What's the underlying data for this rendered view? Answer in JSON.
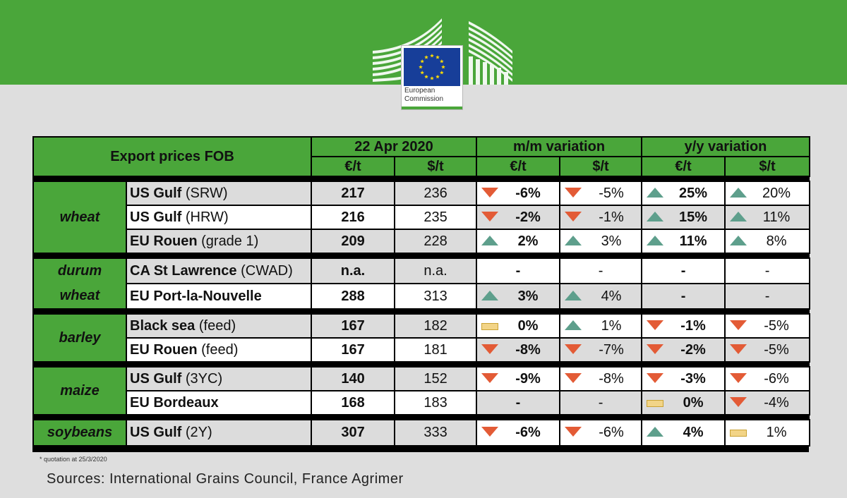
{
  "logo": {
    "name_line1": "European",
    "name_line2": "Commission"
  },
  "colors": {
    "green": "#4aa63a",
    "up": "#5e9f8c",
    "down": "#e35b36",
    "flat": "#f2d487"
  },
  "table": {
    "title": "Export prices FOB",
    "headers": {
      "date": "22 Apr 2020",
      "mm": "m/m variation",
      "yy": "y/y variation",
      "eur": "€/t",
      "usd": "$/t"
    },
    "groups": [
      {
        "label_lines": [
          "wheat"
        ],
        "rows": [
          {
            "origin": "US Gulf",
            "qual": " (SRW)",
            "eur": "217",
            "usd": "236",
            "mm_eur": {
              "dir": "down",
              "v": "-6%"
            },
            "mm_usd": {
              "dir": "down",
              "v": "-5%"
            },
            "yy_eur": {
              "dir": "up",
              "v": "25%"
            },
            "yy_usd": {
              "dir": "up",
              "v": "20%"
            }
          },
          {
            "origin": "US Gulf",
            "qual": " (HRW)",
            "eur": "216",
            "usd": "235",
            "mm_eur": {
              "dir": "down",
              "v": "-2%"
            },
            "mm_usd": {
              "dir": "down",
              "v": "-1%"
            },
            "yy_eur": {
              "dir": "up",
              "v": "15%"
            },
            "yy_usd": {
              "dir": "up",
              "v": "11%"
            }
          },
          {
            "origin": "EU Rouen",
            "qual": " (grade 1)",
            "eur": "209",
            "usd": "228",
            "mm_eur": {
              "dir": "up",
              "v": "2%"
            },
            "mm_usd": {
              "dir": "up",
              "v": "3%"
            },
            "yy_eur": {
              "dir": "up",
              "v": "11%"
            },
            "yy_usd": {
              "dir": "up",
              "v": "8%"
            }
          }
        ]
      },
      {
        "label_lines": [
          "durum",
          "wheat"
        ],
        "rows": [
          {
            "origin": "CA St Lawrence",
            "qual": " (CWAD)",
            "eur": "n.a.",
            "usd": "n.a.",
            "mm_eur": {
              "dir": "none",
              "v": "-"
            },
            "mm_usd": {
              "dir": "none",
              "v": "-"
            },
            "yy_eur": {
              "dir": "none",
              "v": "-"
            },
            "yy_usd": {
              "dir": "none",
              "v": "-"
            }
          },
          {
            "origin": "EU Port-la-Nouvelle",
            "qual": "",
            "eur": "288",
            "usd": "313",
            "mm_eur": {
              "dir": "up",
              "v": "3%"
            },
            "mm_usd": {
              "dir": "up",
              "v": "4%"
            },
            "yy_eur": {
              "dir": "none",
              "v": "-"
            },
            "yy_usd": {
              "dir": "none",
              "v": "-"
            }
          }
        ]
      },
      {
        "label_lines": [
          "barley"
        ],
        "rows": [
          {
            "origin": "Black sea",
            "qual": " (feed)",
            "eur": "167",
            "usd": "182",
            "mm_eur": {
              "dir": "flat",
              "v": "0%"
            },
            "mm_usd": {
              "dir": "up",
              "v": "1%"
            },
            "yy_eur": {
              "dir": "down",
              "v": "-1%"
            },
            "yy_usd": {
              "dir": "down",
              "v": "-5%"
            }
          },
          {
            "origin": "EU Rouen",
            "qual": " (feed)",
            "eur": "167",
            "usd": "181",
            "mm_eur": {
              "dir": "down",
              "v": "-8%"
            },
            "mm_usd": {
              "dir": "down",
              "v": "-7%"
            },
            "yy_eur": {
              "dir": "down",
              "v": "-2%"
            },
            "yy_usd": {
              "dir": "down",
              "v": "-5%"
            }
          }
        ]
      },
      {
        "label_lines": [
          "maize"
        ],
        "rows": [
          {
            "origin": "US Gulf",
            "qual": " (3YC)",
            "eur": "140",
            "usd": "152",
            "mm_eur": {
              "dir": "down",
              "v": "-9%"
            },
            "mm_usd": {
              "dir": "down",
              "v": "-8%"
            },
            "yy_eur": {
              "dir": "down",
              "v": "-3%"
            },
            "yy_usd": {
              "dir": "down",
              "v": "-6%"
            }
          },
          {
            "origin": "EU Bordeaux",
            "qual": "",
            "eur": "168",
            "usd": "183",
            "mm_eur": {
              "dir": "none",
              "v": "-"
            },
            "mm_usd": {
              "dir": "none",
              "v": "-"
            },
            "yy_eur": {
              "dir": "flat",
              "v": "0%"
            },
            "yy_usd": {
              "dir": "down",
              "v": "-4%"
            }
          }
        ]
      },
      {
        "label_lines": [
          "soybeans"
        ],
        "rows": [
          {
            "origin": "US Gulf",
            "qual": " (2Y)",
            "eur": "307",
            "usd": "333",
            "mm_eur": {
              "dir": "down",
              "v": "-6%"
            },
            "mm_usd": {
              "dir": "down",
              "v": "-6%"
            },
            "yy_eur": {
              "dir": "up",
              "v": "4%"
            },
            "yy_usd": {
              "dir": "flat",
              "v": "1%"
            }
          }
        ]
      }
    ]
  },
  "footnote": "* quotation at 25/3/2020",
  "sources": "Sources: International Grains Council, France Agrimer"
}
